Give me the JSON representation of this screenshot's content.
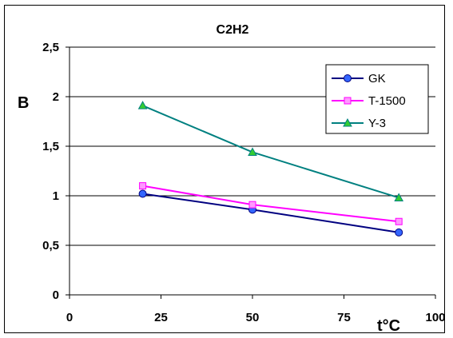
{
  "chart_data": {
    "type": "line",
    "title": "C2H2",
    "xlabel": "t°C",
    "ylabel": "B",
    "xlim": [
      0,
      100
    ],
    "ylim": [
      0,
      2.5
    ],
    "xticks": [
      "0",
      "25",
      "50",
      "75",
      "100"
    ],
    "yticks": [
      "0",
      "0,5",
      "1",
      "1,5",
      "2",
      "2,5"
    ],
    "grid": "horizontal",
    "legend_position": "top-right",
    "x": [
      20,
      50,
      90
    ],
    "series": [
      {
        "name": "GK",
        "values": [
          1.02,
          0.86,
          0.63
        ],
        "color": "#000080",
        "marker_color": "#3366ff",
        "marker": "circle"
      },
      {
        "name": "T-1500",
        "values": [
          1.1,
          0.91,
          0.74
        ],
        "color": "#ff00ff",
        "marker_color": "#ff99ff",
        "marker": "square"
      },
      {
        "name": "Y-3",
        "values": [
          1.91,
          1.44,
          0.98
        ],
        "color": "#008080",
        "marker_color": "#33cc33",
        "marker": "triangle"
      }
    ]
  }
}
